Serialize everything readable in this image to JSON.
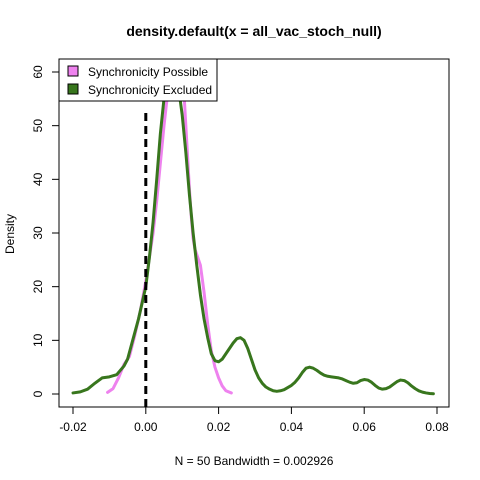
{
  "chart_data": {
    "type": "line",
    "title": "density.default(x = all_vac_stoch_null)",
    "xlabel": "N = 50   Bandwidth = 0.002926",
    "ylabel": "Density",
    "xlim": [
      -0.02,
      0.08
    ],
    "ylim": [
      0,
      60
    ],
    "xticks": [
      -0.02,
      0.0,
      0.02,
      0.04,
      0.06,
      0.08
    ],
    "xtick_labels": [
      "-0.02",
      "0.00",
      "0.02",
      "0.04",
      "0.06",
      "0.08"
    ],
    "yticks": [
      0,
      10,
      20,
      30,
      40,
      50,
      60
    ],
    "ytick_labels": [
      "0",
      "10",
      "20",
      "30",
      "40",
      "50",
      "60"
    ],
    "grid": false,
    "legend_position": "top-left",
    "vline": {
      "x": 0.0,
      "style": "dashed",
      "color": "#000000"
    },
    "series": [
      {
        "name": "Synchronicity Possible",
        "color": "#EE82EE",
        "x": [
          -0.0105,
          -0.009,
          -0.0075,
          -0.006,
          -0.0045,
          -0.003,
          -0.0015,
          0.0,
          0.001,
          0.002,
          0.003,
          0.004,
          0.005,
          0.006,
          0.007,
          0.008,
          0.009,
          0.0095,
          0.01,
          0.0105,
          0.011,
          0.012,
          0.0125,
          0.013,
          0.0135,
          0.014,
          0.015,
          0.016,
          0.017,
          0.018,
          0.019,
          0.02,
          0.021,
          0.022,
          0.0235
        ],
        "y": [
          0.3,
          1.0,
          3.0,
          5.5,
          7.0,
          11.0,
          15.5,
          21.0,
          25.5,
          30.0,
          36.0,
          43.0,
          50.0,
          56.0,
          59.5,
          62.0,
          63.0,
          62.5,
          60.0,
          56.0,
          50.0,
          38.0,
          33.0,
          29.0,
          27.0,
          26.0,
          24.0,
          19.0,
          13.0,
          8.0,
          5.0,
          3.0,
          1.5,
          0.6,
          0.2
        ]
      },
      {
        "name": "Synchronicity Excluded",
        "color": "#38761D",
        "x": [
          -0.02,
          -0.018,
          -0.016,
          -0.014,
          -0.012,
          -0.01,
          -0.008,
          -0.006,
          -0.005,
          -0.004,
          -0.003,
          -0.002,
          -0.001,
          0.0,
          0.001,
          0.002,
          0.003,
          0.004,
          0.005,
          0.006,
          0.007,
          0.008,
          0.009,
          0.01,
          0.011,
          0.012,
          0.013,
          0.014,
          0.015,
          0.016,
          0.017,
          0.018,
          0.019,
          0.02,
          0.021,
          0.022,
          0.023,
          0.024,
          0.025,
          0.026,
          0.027,
          0.028,
          0.029,
          0.03,
          0.031,
          0.032,
          0.033,
          0.034,
          0.035,
          0.036,
          0.037,
          0.038,
          0.039,
          0.04,
          0.041,
          0.042,
          0.043,
          0.044,
          0.045,
          0.046,
          0.047,
          0.048,
          0.049,
          0.05,
          0.051,
          0.052,
          0.053,
          0.054,
          0.055,
          0.056,
          0.057,
          0.058,
          0.059,
          0.06,
          0.061,
          0.062,
          0.063,
          0.064,
          0.065,
          0.066,
          0.067,
          0.068,
          0.069,
          0.07,
          0.071,
          0.072,
          0.073,
          0.074,
          0.075,
          0.076,
          0.077,
          0.078,
          0.079
        ],
        "y": [
          0.2,
          0.4,
          0.9,
          2.0,
          3.0,
          3.2,
          3.6,
          5.2,
          6.5,
          9.0,
          11.5,
          14.0,
          17.0,
          20.0,
          25.5,
          32.0,
          40.0,
          48.5,
          55.0,
          59.0,
          60.5,
          59.5,
          57.0,
          52.0,
          45.0,
          37.0,
          30.0,
          24.0,
          18.5,
          14.0,
          10.5,
          7.5,
          6.2,
          6.0,
          6.5,
          7.5,
          8.5,
          9.5,
          10.3,
          10.5,
          10.0,
          8.5,
          6.5,
          4.5,
          3.0,
          2.0,
          1.3,
          0.9,
          0.6,
          0.5,
          0.6,
          0.8,
          1.2,
          1.6,
          2.2,
          3.0,
          4.0,
          4.8,
          5.0,
          4.8,
          4.4,
          3.9,
          3.5,
          3.3,
          3.2,
          3.1,
          3.0,
          2.8,
          2.5,
          2.2,
          2.0,
          2.1,
          2.5,
          2.7,
          2.6,
          2.2,
          1.6,
          1.1,
          0.9,
          1.0,
          1.3,
          1.8,
          2.3,
          2.6,
          2.5,
          2.1,
          1.5,
          1.0,
          0.6,
          0.35,
          0.2,
          0.1,
          0.05
        ]
      }
    ]
  }
}
